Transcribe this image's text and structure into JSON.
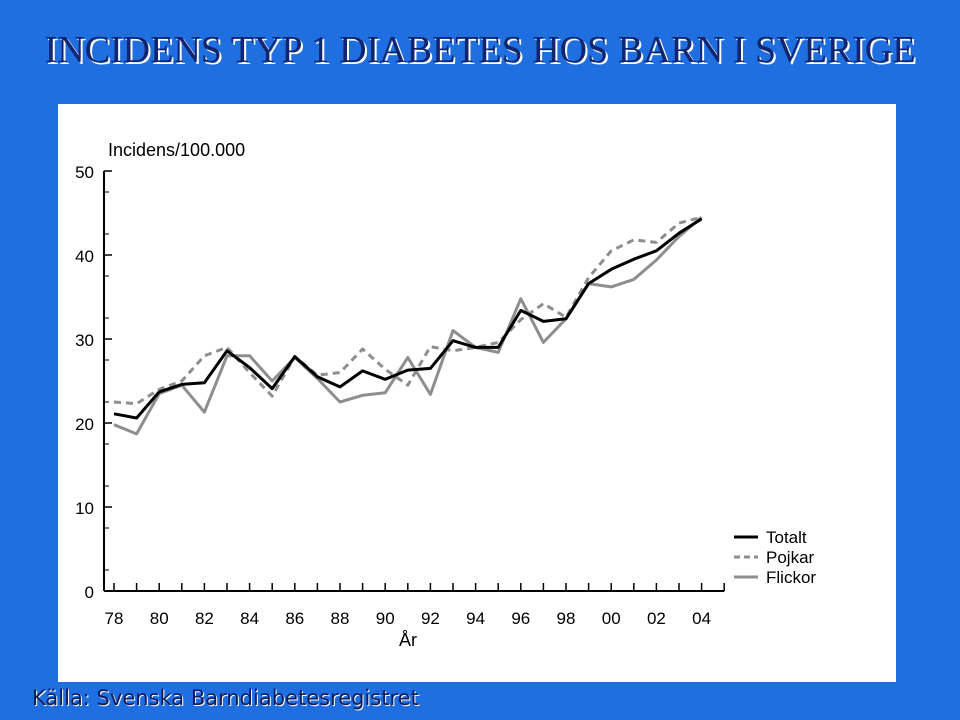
{
  "slide": {
    "title": "INCIDENS TYP 1 DIABETES HOS BARN I SVERIGE",
    "source": "Källa: Svenska Barndiabetesregistret"
  },
  "chart_data": {
    "type": "line",
    "title": "",
    "ylabel": "Incidens/100.000",
    "xlabel": "År",
    "ylim": [
      0,
      50
    ],
    "yticks": [
      0,
      10,
      20,
      30,
      40,
      50
    ],
    "x": [
      1978,
      1979,
      1980,
      1981,
      1982,
      1983,
      1984,
      1985,
      1986,
      1987,
      1988,
      1989,
      1990,
      1991,
      1992,
      1993,
      1994,
      1995,
      1996,
      1997,
      1998,
      1999,
      2000,
      2001,
      2002,
      2003,
      2004,
      2005
    ],
    "xticks": [
      1978,
      1980,
      1982,
      1984,
      1986,
      1988,
      1990,
      1992,
      1994,
      1996,
      1998,
      2000,
      2002,
      2004
    ],
    "xticklabels": [
      "78",
      "80",
      "82",
      "84",
      "86",
      "88",
      "90",
      "92",
      "94",
      "96",
      "98",
      "00",
      "02",
      "04"
    ],
    "grid": false,
    "legend_position": "right",
    "series": [
      {
        "name": "Totalt",
        "color": "#000000",
        "dash": "solid",
        "width": 3,
        "values": [
          21.1,
          20.6,
          23.7,
          24.6,
          24.8,
          28.6,
          26.6,
          24.1,
          27.9,
          25.5,
          24.3,
          26.2,
          25.2,
          26.3,
          26.5,
          29.8,
          29.0,
          29.0,
          33.4,
          32.1,
          32.4,
          36.6,
          38.3,
          39.5,
          40.5,
          42.6,
          44.3,
          null
        ]
      },
      {
        "name": "Pojkar",
        "color": "#8e8e8e",
        "dash": "dashed",
        "width": 3,
        "values": [
          22.5,
          22.3,
          24.0,
          25.0,
          28.0,
          29.0,
          26.0,
          23.2,
          27.9,
          25.7,
          26.0,
          28.8,
          26.4,
          24.5,
          29.1,
          28.6,
          29.0,
          29.6,
          32.3,
          34.2,
          32.6,
          37.3,
          40.5,
          41.8,
          41.5,
          43.8,
          44.5,
          null
        ]
      },
      {
        "name": "Flickor",
        "color": "#8e8e8e",
        "dash": "solid",
        "width": 3,
        "values": [
          19.8,
          18.7,
          23.5,
          24.5,
          21.3,
          28.0,
          28.0,
          25.0,
          27.8,
          25.3,
          22.5,
          23.3,
          23.6,
          27.8,
          23.4,
          31.0,
          29.0,
          28.4,
          34.8,
          29.6,
          32.4,
          36.6,
          36.2,
          37.1,
          39.4,
          42.2,
          44.5,
          null
        ]
      }
    ]
  }
}
